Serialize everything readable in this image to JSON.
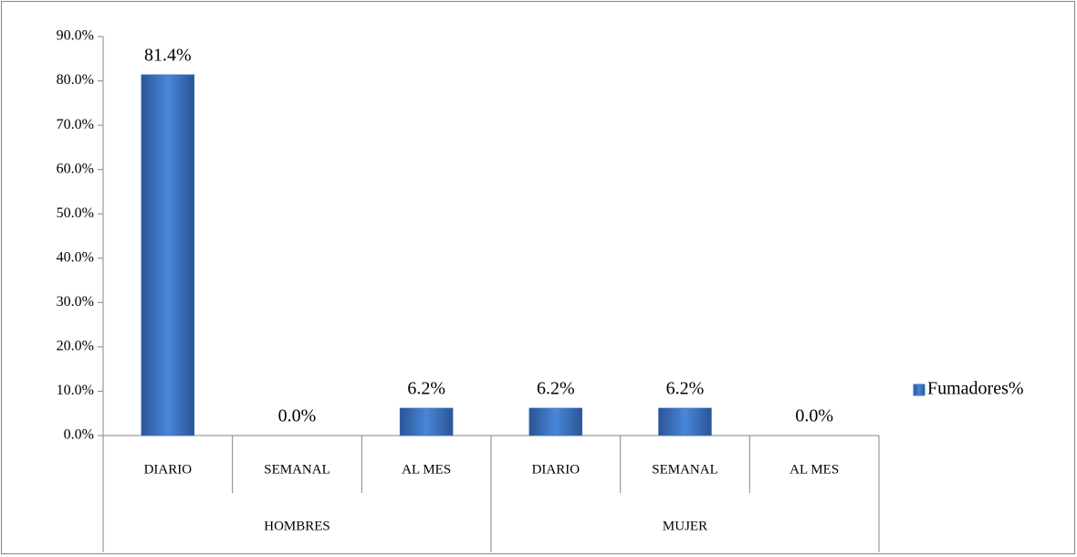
{
  "chart_data": {
    "type": "bar",
    "categories": [
      "DIARIO",
      "SEMANAL",
      "AL MES",
      "DIARIO",
      "SEMANAL",
      "AL MES"
    ],
    "category_groups": [
      "HOMBRES",
      "HOMBRES",
      "HOMBRES",
      "MUJER",
      "MUJER",
      "MUJER"
    ],
    "series": [
      {
        "name": "Fumadores%",
        "color": "#3b73c4",
        "values": [
          81.4,
          0,
          6.2,
          6.2,
          6.2,
          0
        ],
        "value_labels": [
          "81.4%",
          "0.0%",
          "6.2%",
          "6.2%",
          "6.2%",
          "0.0%"
        ]
      }
    ],
    "ylim": [
      0,
      90
    ],
    "yticks": [
      {
        "value": 0,
        "label": "0.0%"
      },
      {
        "value": 10,
        "label": "10.0%"
      },
      {
        "value": 20,
        "label": "20.0%"
      },
      {
        "value": 30,
        "label": "30.0%"
      },
      {
        "value": 40,
        "label": "40.0%"
      },
      {
        "value": 50,
        "label": "50.0%"
      },
      {
        "value": 60,
        "label": "60.0%"
      },
      {
        "value": 70,
        "label": "70.0%"
      },
      {
        "value": 80,
        "label": "80.0%"
      },
      {
        "value": 90,
        "label": "90.0%"
      }
    ],
    "legend": "right"
  }
}
